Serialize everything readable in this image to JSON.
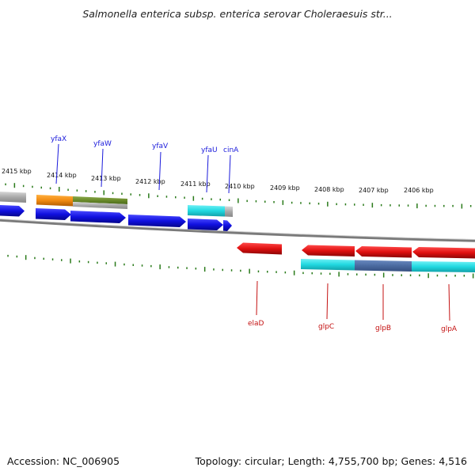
{
  "title": "Salmonella enterica subsp. enterica serovar Choleraesuis str...",
  "accession": "Accession: NC_006905",
  "summary": "Topology: circular; Length: 4,755,700 bp; Genes: 4,516",
  "kbp_labels": [
    {
      "text": "2415 kbp"
    },
    {
      "text": "2414 kbp"
    },
    {
      "text": "2413 kbp"
    },
    {
      "text": "2412 kbp"
    },
    {
      "text": "2411 kbp"
    },
    {
      "text": "2410 kbp"
    },
    {
      "text": "2409 kbp"
    },
    {
      "text": "2408 kbp"
    },
    {
      "text": "2407 kbp"
    },
    {
      "text": "2406 kbp"
    }
  ],
  "forward_genes": [
    {
      "name": "yfaX"
    },
    {
      "name": "yfaW"
    },
    {
      "name": "yfaV"
    },
    {
      "name": "yfaU"
    },
    {
      "name": "cinA"
    }
  ],
  "reverse_genes": [
    {
      "name": "elaD"
    },
    {
      "name": "glpC"
    },
    {
      "name": "glpB"
    },
    {
      "name": "glpA"
    }
  ],
  "colors": {
    "gene_blue": "#1010e0",
    "gene_red": "#e01010",
    "tick_green": "#2a7a1a",
    "cyan": "#20d8e0",
    "orange": "#f08a10",
    "olive": "#6a8a2a",
    "grey": "#a8a8a8",
    "backbone": "#7a7a7a"
  }
}
